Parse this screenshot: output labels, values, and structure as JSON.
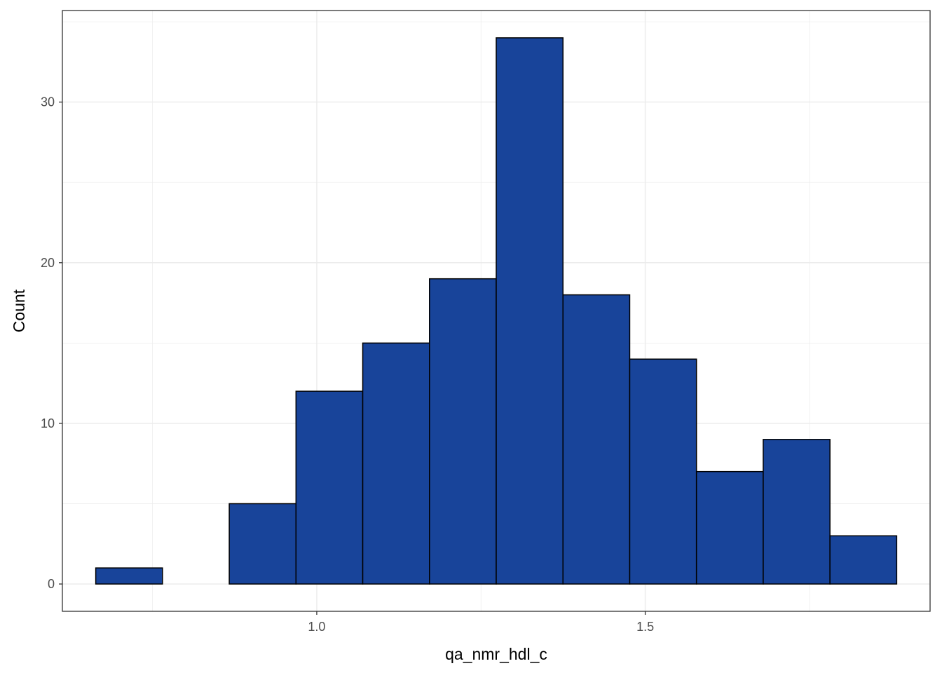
{
  "chart_data": {
    "type": "bar",
    "subtype": "histogram",
    "xlabel": "qa_nmr_hdl_c",
    "ylabel": "Count",
    "bin_width": 0.1016,
    "bins": [
      {
        "x0": 0.6636,
        "x1": 0.7652,
        "count": 1
      },
      {
        "x0": 0.7652,
        "x1": 0.8668,
        "count": 0
      },
      {
        "x0": 0.8668,
        "x1": 0.9684,
        "count": 5
      },
      {
        "x0": 0.9684,
        "x1": 1.07,
        "count": 12
      },
      {
        "x0": 1.07,
        "x1": 1.1716,
        "count": 15
      },
      {
        "x0": 1.1716,
        "x1": 1.2732,
        "count": 19
      },
      {
        "x0": 1.2732,
        "x1": 1.3748,
        "count": 34
      },
      {
        "x0": 1.3748,
        "x1": 1.4764,
        "count": 18
      },
      {
        "x0": 1.4764,
        "x1": 1.578,
        "count": 14
      },
      {
        "x0": 1.578,
        "x1": 1.6796,
        "count": 7
      },
      {
        "x0": 1.6796,
        "x1": 1.7812,
        "count": 9
      },
      {
        "x0": 1.7812,
        "x1": 1.8828,
        "count": 3
      }
    ],
    "xlim": [
      0.6128,
      1.9336
    ],
    "ylim": [
      -1.7,
      35.7
    ],
    "x_ticks": [
      {
        "value": 1.0,
        "label": "1.0"
      },
      {
        "value": 1.5,
        "label": "1.5"
      }
    ],
    "x_minor_ticks": [
      0.75,
      1.25,
      1.75
    ],
    "y_ticks": [
      {
        "value": 0,
        "label": "0"
      },
      {
        "value": 10,
        "label": "10"
      },
      {
        "value": 20,
        "label": "20"
      },
      {
        "value": 30,
        "label": "30"
      }
    ],
    "y_minor_ticks": [
      5,
      15,
      25,
      35
    ],
    "grid": true,
    "legend": "none",
    "colors": {
      "bar_fill": "#18449a",
      "bar_stroke": "#000000",
      "grid": "#ebebeb",
      "panel_border": "#333333",
      "tick_label": "#4d4d4d"
    }
  }
}
